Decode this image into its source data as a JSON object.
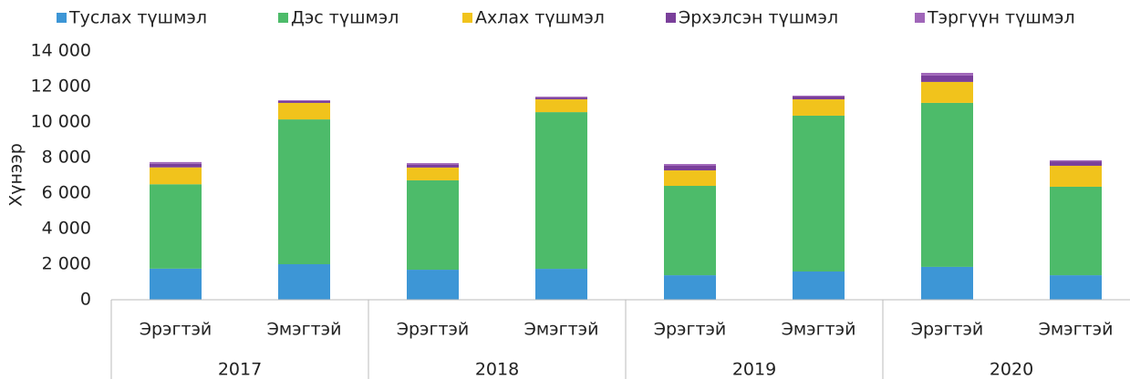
{
  "chart_data": {
    "type": "stacked_bar",
    "y_label": "Хүнээр",
    "categories": [
      "Эрэгтэй",
      "Эмэгтэй",
      "Эрэгтэй",
      "Эмэгтэй",
      "Эрэгтэй",
      "Эмэгтэй",
      "Эрэгтэй",
      "Эмэгтэй"
    ],
    "group_labels": [
      "2017",
      "2018",
      "2019",
      "2020"
    ],
    "series": [
      {
        "name": "Туслах түшмэл",
        "color": "#3d96d6",
        "values": [
          1750,
          2000,
          1690,
          1740,
          1380,
          1590,
          1850,
          1380
        ]
      },
      {
        "name": "Дэс түшмэл",
        "color": "#4dbb6a",
        "values": [
          4750,
          8150,
          5030,
          8820,
          5030,
          8770,
          9230,
          4980
        ]
      },
      {
        "name": "Ахлах түшмэл",
        "color": "#f1c31c",
        "values": [
          950,
          930,
          720,
          720,
          870,
          920,
          1180,
          1180
        ]
      },
      {
        "name": "Эрхэлсэн түшмэл",
        "color": "#7a3f9a",
        "values": [
          200,
          100,
          150,
          100,
          260,
          160,
          360,
          250
        ]
      },
      {
        "name": "Тэргүүн түшмэл",
        "color": "#a066b9",
        "values": [
          100,
          50,
          100,
          50,
          100,
          50,
          150,
          60
        ]
      }
    ],
    "ylim": [
      0,
      14000
    ],
    "yticks": [
      0,
      {
        "value": 2000,
        "label": "2 000"
      },
      {
        "value": 4000,
        "label": "4 000"
      },
      {
        "value": 6000,
        "label": "6 000"
      },
      {
        "value": 8000,
        "label": "8 000"
      },
      {
        "value": 10000,
        "label": "10 000"
      },
      {
        "value": 12000,
        "label": "12 000"
      },
      {
        "value": 14000,
        "label": "14 000"
      }
    ],
    "legend": "top"
  }
}
